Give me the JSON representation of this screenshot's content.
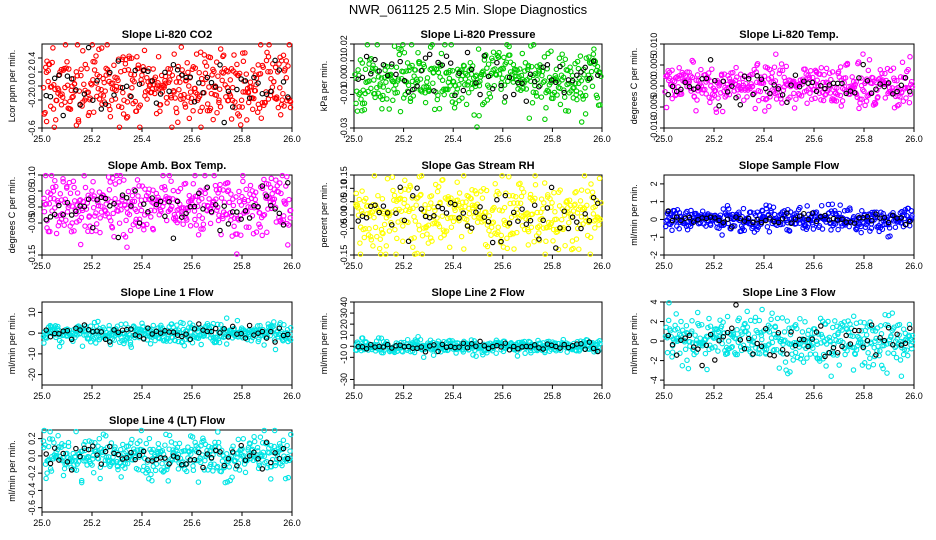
{
  "page_title": "NWR_061125  2.5 Min. Slope Diagnostics",
  "colors": {
    "overlay": "#000000",
    "frame": "#000000"
  },
  "chart_data": [
    {
      "type": "scatter",
      "title": "Slope Li-820 CO2",
      "ylabel": "Lcor ppm per min.",
      "xlim": [
        25.0,
        26.0
      ],
      "ylim": [
        -0.6,
        0.6
      ],
      "color": "#ff0000",
      "xticks": [
        "25.0",
        "25.2",
        "25.4",
        "25.6",
        "25.8",
        "26.0"
      ],
      "yticks": [
        "-0.6",
        "-0.2",
        "0.0",
        "0.2",
        "0.4"
      ],
      "yspread": 0.28,
      "n": 420,
      "seed": 11
    },
    {
      "type": "scatter",
      "title": "Slope Li-820 Pressure",
      "ylabel": "kPa per min.",
      "xlim": [
        25.0,
        26.0
      ],
      "ylim": [
        -0.03,
        0.02
      ],
      "color": "#00cc00",
      "xticks": [
        "25.0",
        "25.2",
        "25.4",
        "25.6",
        "25.8",
        "26.0"
      ],
      "yticks": [
        "-0.03",
        "-0.01",
        "0.00",
        "0.01",
        "0.02"
      ],
      "yspread": 0.009,
      "n": 420,
      "seed": 23
    },
    {
      "type": "scatter",
      "title": "Slope Li-820 Temp.",
      "ylabel": "degrees C per min.",
      "xlim": [
        25.0,
        26.0
      ],
      "ylim": [
        -0.01,
        0.01
      ],
      "color": "#ff00ff",
      "xticks": [
        "25.0",
        "25.2",
        "25.4",
        "25.6",
        "25.8",
        "26.0"
      ],
      "yticks": [
        "-0.010",
        "-0.005",
        "0.000",
        "0.005",
        "0.010"
      ],
      "yspread": 0.0025,
      "n": 420,
      "seed": 37
    },
    {
      "type": "scatter",
      "title": "Slope Amb. Box Temp.",
      "ylabel": "degrees C per min.",
      "xlim": [
        25.0,
        26.0
      ],
      "ylim": [
        -0.15,
        0.1
      ],
      "color": "#ff00ff",
      "xticks": [
        "25.0",
        "25.2",
        "25.4",
        "25.6",
        "25.8",
        "26.0"
      ],
      "yticks": [
        "-0.15",
        "-0.05",
        "0.00",
        "0.05",
        "0.10"
      ],
      "yspread": 0.05,
      "n": 420,
      "seed": 41
    },
    {
      "type": "scatter",
      "title": "Slope Gas Stream RH",
      "ylabel": "percent per min.",
      "xlim": [
        25.0,
        26.0
      ],
      "ylim": [
        -0.15,
        0.15
      ],
      "color": "#ffff00",
      "xticks": [
        "25.0",
        "25.2",
        "25.4",
        "25.6",
        "25.8",
        "26.0"
      ],
      "yticks": [
        "-0.15",
        "-0.05",
        "0.00",
        "0.05",
        "0.10",
        "0.15"
      ],
      "yspread": 0.07,
      "n": 420,
      "seed": 53
    },
    {
      "type": "scatter",
      "title": "Slope Sample Flow",
      "ylabel": "ml/min per min.",
      "xlim": [
        25.0,
        26.0
      ],
      "ylim": [
        -2,
        2.5
      ],
      "color": "#0000ff",
      "xticks": [
        "25.0",
        "25.2",
        "25.4",
        "25.6",
        "25.8",
        "26.0"
      ],
      "yticks": [
        "-2",
        "-1",
        "0",
        "1",
        "2"
      ],
      "yspread": 0.3,
      "n": 420,
      "seed": 67
    },
    {
      "type": "scatter",
      "title": "Slope Line 1 Flow",
      "ylabel": "ml/min per min.",
      "xlim": [
        25.0,
        26.0
      ],
      "ylim": [
        -25,
        15
      ],
      "color": "#00e5e5",
      "xticks": [
        "25.0",
        "25.2",
        "25.4",
        "25.6",
        "25.8",
        "26.0"
      ],
      "yticks": [
        "-20",
        "-10",
        "0",
        "10"
      ],
      "yspread": 2.5,
      "n": 420,
      "seed": 71
    },
    {
      "type": "scatter",
      "title": "Slope Line 2 Flow",
      "ylabel": "ml/min per min.",
      "xlim": [
        25.0,
        26.0
      ],
      "ylim": [
        -35,
        40
      ],
      "color": "#00e5e5",
      "xticks": [
        "25.0",
        "25.2",
        "25.4",
        "25.6",
        "25.8",
        "26.0"
      ],
      "yticks": [
        "-30",
        "-10",
        "0",
        "10",
        "20",
        "30",
        "40"
      ],
      "yspread": 3,
      "n": 420,
      "seed": 83
    },
    {
      "type": "scatter",
      "title": "Slope Line 3 Flow",
      "ylabel": "ml/min per min.",
      "xlim": [
        25.0,
        26.0
      ],
      "ylim": [
        -4.5,
        4
      ],
      "color": "#00e5e5",
      "xticks": [
        "25.0",
        "25.2",
        "25.4",
        "25.6",
        "25.8",
        "26.0"
      ],
      "yticks": [
        "-4",
        "-2",
        "0",
        "2",
        "4"
      ],
      "yspread": 1.4,
      "n": 420,
      "seed": 97
    },
    {
      "type": "scatter",
      "title": "Slope Line 4 (LT) Flow",
      "ylabel": "ml/min per min.",
      "xlim": [
        25.0,
        26.0
      ],
      "ylim": [
        -0.65,
        0.3
      ],
      "color": "#00e5e5",
      "xticks": [
        "25.0",
        "25.2",
        "25.4",
        "25.6",
        "25.8",
        "26.0"
      ],
      "yticks": [
        "-0.6",
        "-0.4",
        "-0.2",
        "0.0",
        "0.2"
      ],
      "yspread": 0.12,
      "n": 420,
      "seed": 101
    }
  ]
}
